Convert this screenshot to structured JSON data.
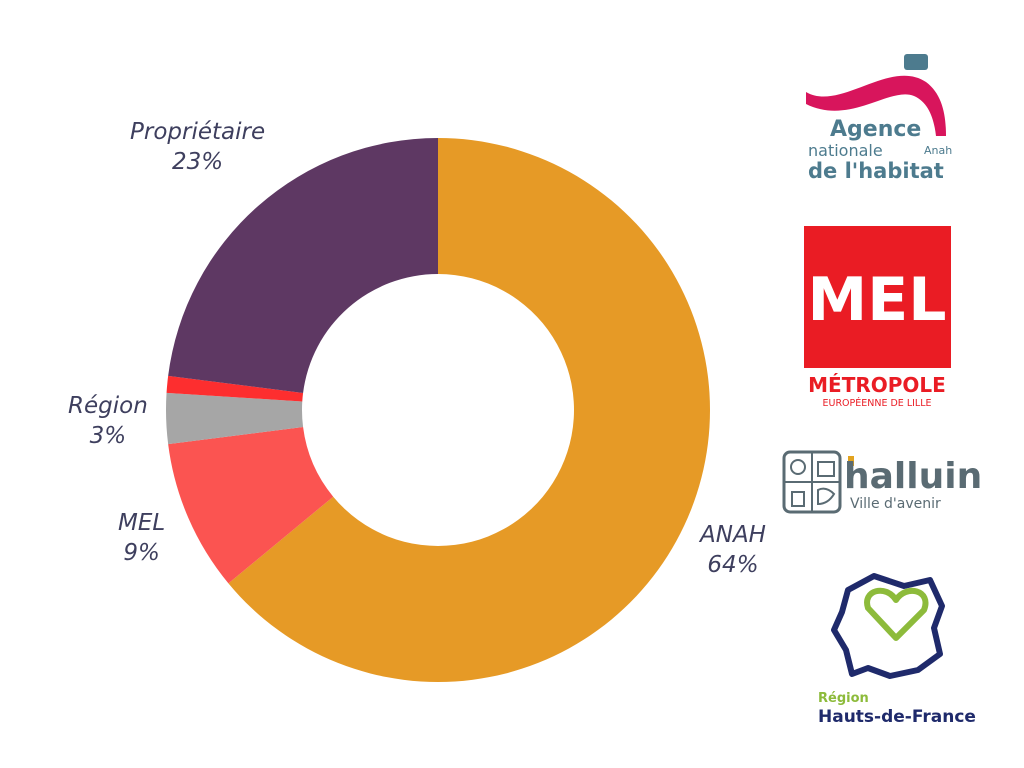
{
  "chart_data": {
    "type": "pie",
    "donut": true,
    "slices": [
      {
        "label": "ANAH",
        "value": 64,
        "value_label": "64%",
        "color": "#e69a26"
      },
      {
        "label": "MEL",
        "value": 9,
        "value_label": "9%",
        "color": "#fb5451"
      },
      {
        "label": "Région",
        "value": 3,
        "value_label": "3%",
        "color": "#a6a6a6"
      },
      {
        "label": "",
        "value": 1,
        "value_label": "",
        "color": "#fd2e2f"
      },
      {
        "label": "Propriétaire",
        "value": 23,
        "value_label": "23%",
        "color": "#5e3863"
      }
    ]
  },
  "logos": {
    "anah": {
      "line1": "Agence",
      "line2": "nationale",
      "line3": "de l'habitat",
      "small": "Anah",
      "colors": {
        "arc": "#d8155c",
        "square": "#4d7b8e",
        "text": "#4d7b8e"
      }
    },
    "mel": {
      "big": "MEL",
      "line1": "MÉTROPOLE",
      "line2": "EUROPÉENNE DE LILLE",
      "color": "#ea1c24"
    },
    "halluin": {
      "name": "halluin",
      "tagline": "Ville d'avenir",
      "color": "#5a6b73",
      "accent": "#e2a31f"
    },
    "region": {
      "line1": "Région",
      "line2": "Hauts-de-France",
      "colors": {
        "outline": "#1f2a6b",
        "heart": "#8dbb3b",
        "text_top": "#8dbb3b",
        "text_bottom": "#1f2a6b"
      }
    }
  }
}
